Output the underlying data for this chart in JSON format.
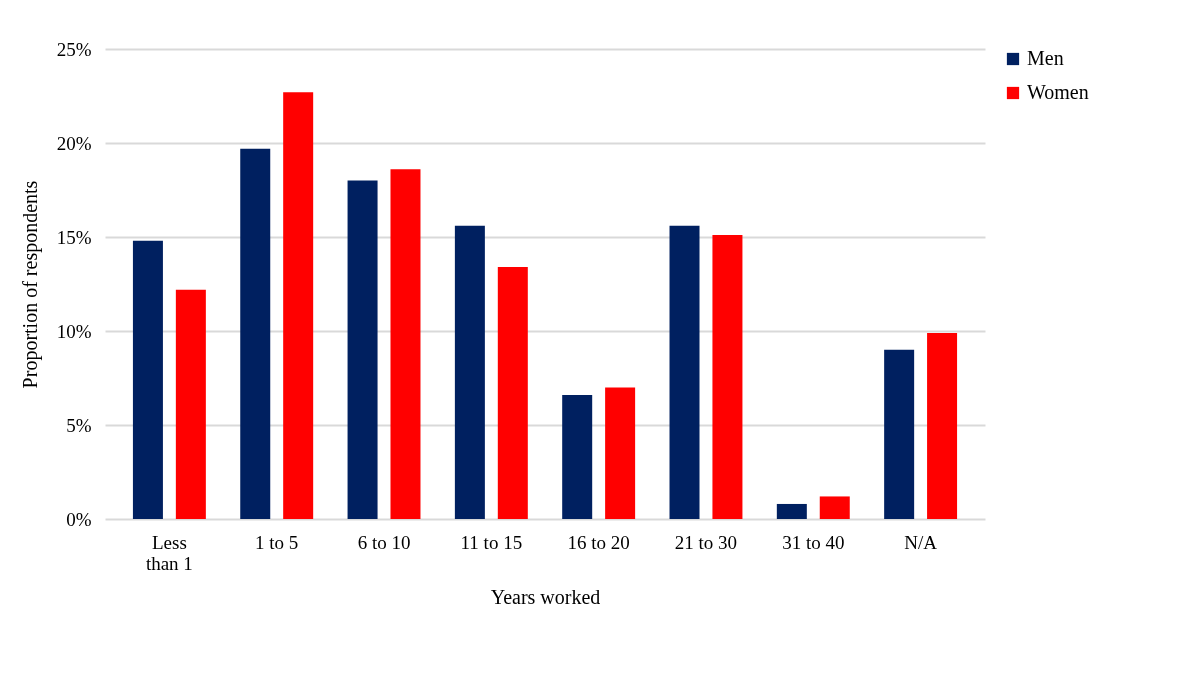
{
  "chart_data": {
    "type": "bar",
    "xlabel": "Years worked",
    "ylabel": "Proportion of respondents",
    "categories": [
      "Less than 1",
      "1 to 5",
      "6 to 10",
      "11 to 15",
      "16 to 20",
      "21 to 30",
      "31 to 40",
      "N/A"
    ],
    "series": [
      {
        "name": "Men",
        "color": "#002060",
        "values": [
          14.8,
          19.7,
          18.0,
          15.6,
          6.6,
          15.6,
          0.8,
          9.0
        ]
      },
      {
        "name": "Women",
        "color": "#ff0000",
        "values": [
          12.2,
          22.7,
          18.6,
          13.4,
          7.0,
          15.1,
          1.2,
          9.9
        ]
      }
    ],
    "ylim": [
      0,
      25
    ],
    "yticks": [
      {
        "value": 0,
        "label": "0%"
      },
      {
        "value": 5,
        "label": "5%"
      },
      {
        "value": 10,
        "label": "10%"
      },
      {
        "value": 15,
        "label": "15%"
      },
      {
        "value": 20,
        "label": "20%"
      },
      {
        "value": 25,
        "label": "25%"
      }
    ],
    "grid": "y",
    "legend": "right"
  }
}
